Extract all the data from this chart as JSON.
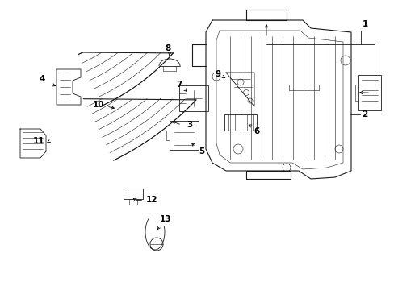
{
  "bg_color": "#ffffff",
  "line_color": "#1a1a1a",
  "figsize": [
    4.89,
    3.6
  ],
  "dpi": 100,
  "xlim": [
    0,
    489
  ],
  "ylim": [
    0,
    360
  ]
}
